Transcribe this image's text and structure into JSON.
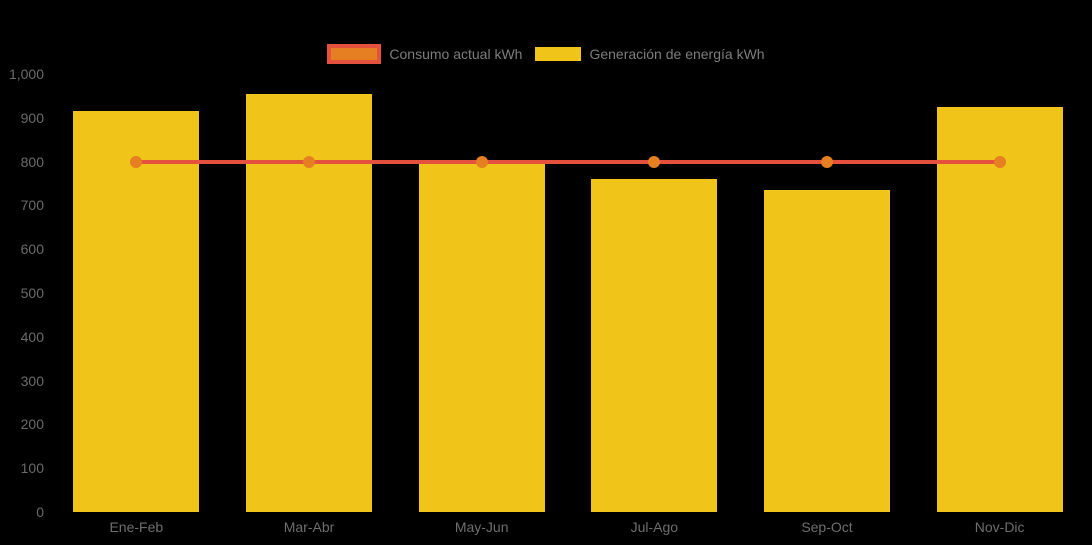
{
  "background_color": "#000000",
  "legend": {
    "position": "top-center",
    "items": [
      {
        "label": "Consumo actual kWh",
        "type": "line",
        "line_color": "#E4513D",
        "marker_color": "#E67E22"
      },
      {
        "label": "Generación de energía kWh",
        "type": "bar",
        "color": "#F0C419"
      }
    ]
  },
  "chart_data": {
    "type": "bar",
    "subtype": "bar-with-line-overlay",
    "title": "",
    "xlabel": "",
    "ylabel": "",
    "categories": [
      "Ene-Feb",
      "Mar-Abr",
      "May-Jun",
      "Jul-Ago",
      "Sep-Oct",
      "Nov-Dic"
    ],
    "series": [
      {
        "name": "Consumo actual kWh",
        "type": "line",
        "color": "#E4513D",
        "marker_color": "#E67E22",
        "values": [
          800,
          800,
          800,
          800,
          800,
          800
        ]
      },
      {
        "name": "Generación de energía kWh",
        "type": "bar",
        "color": "#F0C419",
        "values": [
          915,
          955,
          795,
          760,
          735,
          925
        ]
      }
    ],
    "ylim": [
      0,
      1000
    ],
    "y_ticks": [
      {
        "value": 0,
        "label": "0"
      },
      {
        "value": 100,
        "label": "100"
      },
      {
        "value": 200,
        "label": "200"
      },
      {
        "value": 300,
        "label": "300"
      },
      {
        "value": 400,
        "label": "400"
      },
      {
        "value": 500,
        "label": "500"
      },
      {
        "value": 600,
        "label": "600"
      },
      {
        "value": 700,
        "label": "700"
      },
      {
        "value": 800,
        "label": "800"
      },
      {
        "value": 900,
        "label": "900"
      },
      {
        "value": 1000,
        "label": "1,000"
      }
    ],
    "grid": false,
    "legend_position": "top-center",
    "axis_tick_color": "#6a6a6a"
  }
}
